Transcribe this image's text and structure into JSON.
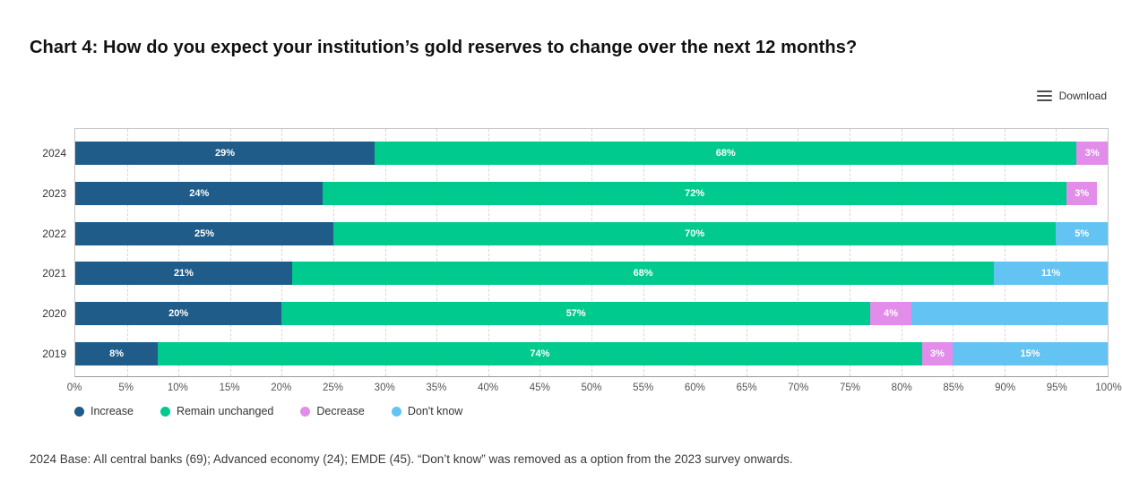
{
  "page": {
    "title": "Chart 4: How do you expect your institution’s gold reserves to change over the next 12 months?",
    "download_label": "Download",
    "footnote": "2024 Base: All central banks (69); Advanced economy (24); EMDE (45). “Don’t know” was removed as a option from the 2023 survey onwards."
  },
  "colors": {
    "increase": "#1F5C89",
    "remain_unchanged": "#00CA8E",
    "decrease": "#E18DE9",
    "dont_know": "#63C3F2",
    "gridline": "#d6d6d6",
    "plot_border": "#c6c6c6"
  },
  "chart_data": {
    "type": "bar",
    "orientation": "horizontal",
    "stacked": true,
    "title": "Chart 4: How do you expect your institution’s gold reserves to change over the next 12 months?",
    "categories": [
      "2024",
      "2023",
      "2022",
      "2021",
      "2020",
      "2019"
    ],
    "series": [
      {
        "name": "Increase",
        "color": "#1F5C89",
        "values": [
          29,
          24,
          25,
          21,
          20,
          8
        ]
      },
      {
        "name": "Remain unchanged",
        "color": "#00CA8E",
        "values": [
          68,
          72,
          70,
          68,
          57,
          74
        ]
      },
      {
        "name": "Decrease",
        "color": "#E18DE9",
        "values": [
          3,
          3,
          0,
          0,
          4,
          3
        ]
      },
      {
        "name": "Don't know",
        "color": "#63C3F2",
        "values": [
          0,
          0,
          5,
          11,
          19,
          15
        ]
      }
    ],
    "data_labels": {
      "format": "percent",
      "color": "#ffffff",
      "hidden": [
        {
          "category": "2020",
          "series": "Don't know"
        }
      ]
    },
    "xlim": [
      0,
      100
    ],
    "tick_step": 5,
    "ticks": [
      "0%",
      "5%",
      "10%",
      "15%",
      "20%",
      "25%",
      "30%",
      "35%",
      "40%",
      "45%",
      "50%",
      "55%",
      "60%",
      "65%",
      "70%",
      "75%",
      "80%",
      "85%",
      "90%",
      "95%",
      "100%"
    ],
    "grid": "dashed-vertical",
    "legend": {
      "position": "bottom",
      "items": [
        "Increase",
        "Remain unchanged",
        "Decrease",
        "Don't know"
      ]
    }
  }
}
